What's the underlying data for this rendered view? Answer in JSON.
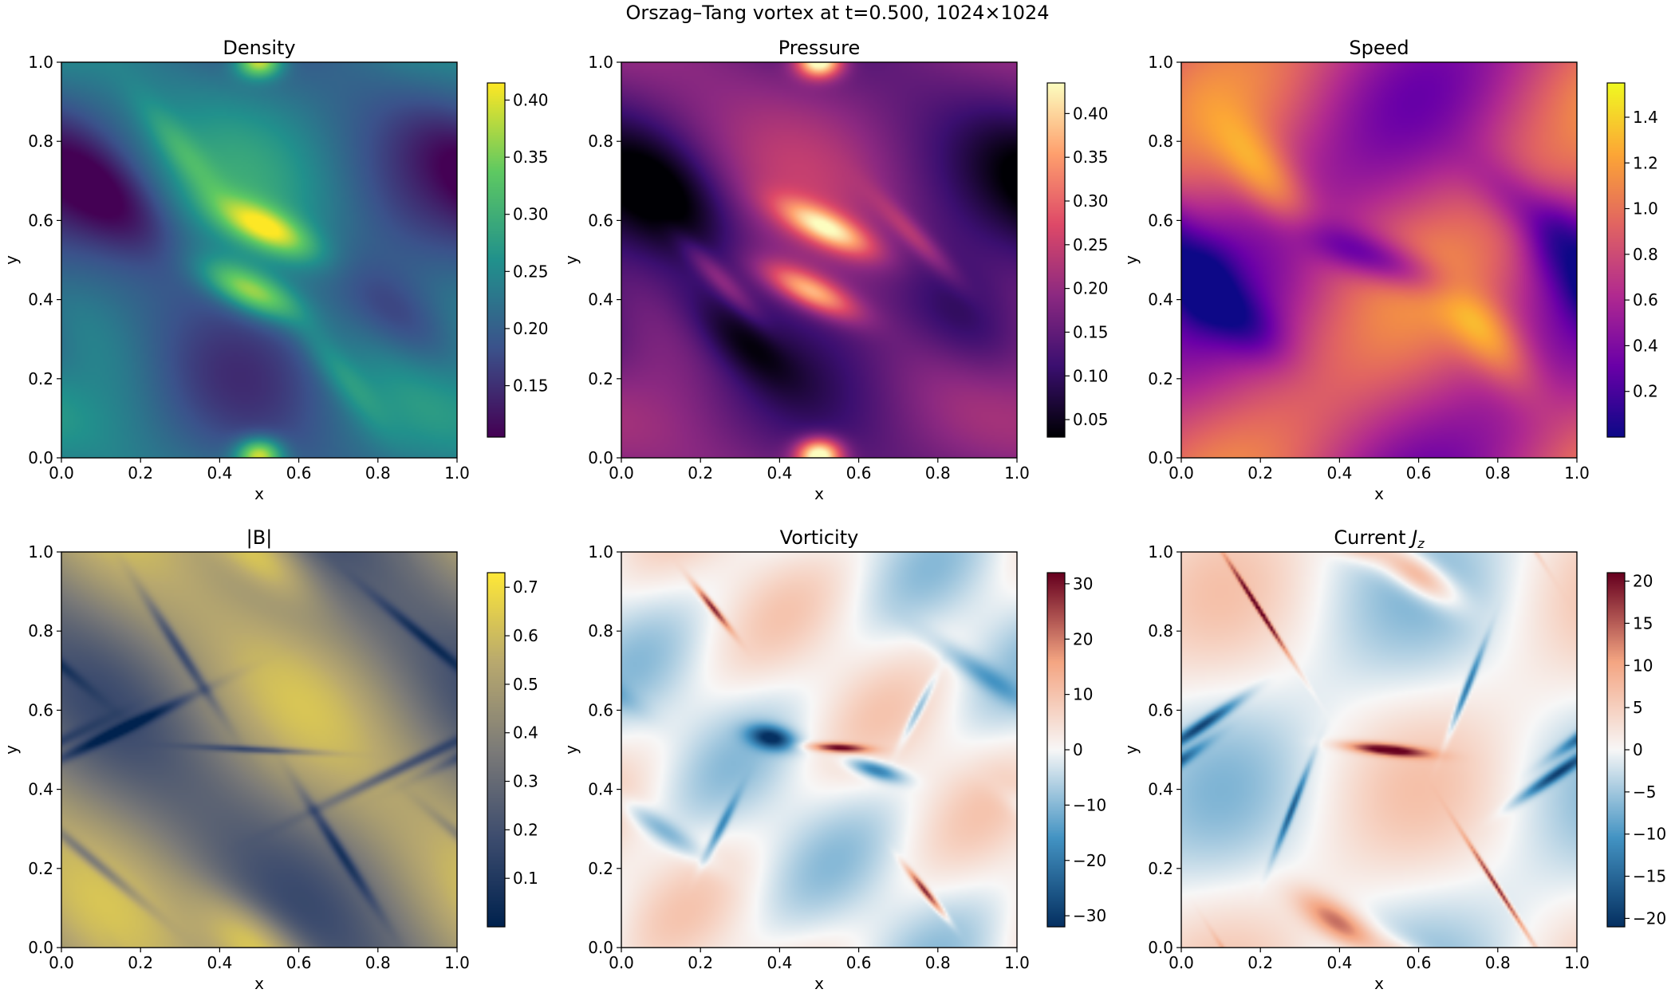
{
  "figure": {
    "suptitle": "Orszag–Tang vortex at t=0.500, 1024×1024"
  },
  "chart_data": [
    {
      "type": "heatmap",
      "title": "Density",
      "title_mathsub": "",
      "xlabel": "x",
      "ylabel": "y",
      "xlim": [
        0,
        1
      ],
      "ylim": [
        0,
        1
      ],
      "xticks": [
        "0.0",
        "0.2",
        "0.4",
        "0.6",
        "0.8",
        "1.0"
      ],
      "yticks": [
        "0.0",
        "0.2",
        "0.4",
        "0.6",
        "0.8",
        "1.0"
      ],
      "colormap": "viridis",
      "colors": [
        "#440154",
        "#3b528b",
        "#21918c",
        "#5ec962",
        "#fde725"
      ],
      "field": "density",
      "vrange": [
        0.105,
        0.415
      ],
      "colorbar_ticks": [
        0.15,
        0.2,
        0.25,
        0.3,
        0.35,
        0.4
      ],
      "colorbar_labels": [
        "0.15",
        "0.20",
        "0.25",
        "0.30",
        "0.35",
        "0.40"
      ]
    },
    {
      "type": "heatmap",
      "title": "Pressure",
      "title_mathsub": "",
      "xlabel": "x",
      "ylabel": "y",
      "xlim": [
        0,
        1
      ],
      "ylim": [
        0,
        1
      ],
      "xticks": [
        "0.0",
        "0.2",
        "0.4",
        "0.6",
        "0.8",
        "1.0"
      ],
      "yticks": [
        "0.0",
        "0.2",
        "0.4",
        "0.6",
        "0.8",
        "1.0"
      ],
      "colormap": "magma",
      "colors": [
        "#000004",
        "#3b0f70",
        "#8c2981",
        "#de4968",
        "#fe9f6d",
        "#fcfdbf"
      ],
      "field": "pressure",
      "vrange": [
        0.03,
        0.435
      ],
      "colorbar_ticks": [
        0.05,
        0.1,
        0.15,
        0.2,
        0.25,
        0.3,
        0.35,
        0.4
      ],
      "colorbar_labels": [
        "0.05",
        "0.10",
        "0.15",
        "0.20",
        "0.25",
        "0.30",
        "0.35",
        "0.40"
      ]
    },
    {
      "type": "heatmap",
      "title": "Speed",
      "title_mathsub": "",
      "xlabel": "x",
      "ylabel": "y",
      "xlim": [
        0,
        1
      ],
      "ylim": [
        0,
        1
      ],
      "xticks": [
        "0.0",
        "0.2",
        "0.4",
        "0.6",
        "0.8",
        "1.0"
      ],
      "yticks": [
        "0.0",
        "0.2",
        "0.4",
        "0.6",
        "0.8",
        "1.0"
      ],
      "colormap": "plasma",
      "colors": [
        "#0d0887",
        "#6a00a8",
        "#b12a90",
        "#e16462",
        "#fca636",
        "#f0f921"
      ],
      "field": "speed",
      "vrange": [
        0.0,
        1.55
      ],
      "colorbar_ticks": [
        0.2,
        0.4,
        0.6,
        0.8,
        1.0,
        1.2,
        1.4
      ],
      "colorbar_labels": [
        "0.2",
        "0.4",
        "0.6",
        "0.8",
        "1.0",
        "1.2",
        "1.4"
      ]
    },
    {
      "type": "heatmap",
      "title": "|B|",
      "title_mathsub": "",
      "xlabel": "x",
      "ylabel": "y",
      "xlim": [
        0,
        1
      ],
      "ylim": [
        0,
        1
      ],
      "xticks": [
        "0.0",
        "0.2",
        "0.4",
        "0.6",
        "0.8",
        "1.0"
      ],
      "yticks": [
        "0.0",
        "0.2",
        "0.4",
        "0.6",
        "0.8",
        "1.0"
      ],
      "colormap": "cividis",
      "colors": [
        "#00224e",
        "#3d4c6e",
        "#7c7b78",
        "#b9a96e",
        "#fee838"
      ],
      "field": "bmag",
      "vrange": [
        0.0,
        0.73
      ],
      "colorbar_ticks": [
        0.1,
        0.2,
        0.3,
        0.4,
        0.5,
        0.6,
        0.7
      ],
      "colorbar_labels": [
        "0.1",
        "0.2",
        "0.3",
        "0.4",
        "0.5",
        "0.6",
        "0.7"
      ]
    },
    {
      "type": "heatmap",
      "title": "Vorticity",
      "title_mathsub": "",
      "xlabel": "x",
      "ylabel": "y",
      "xlim": [
        0,
        1
      ],
      "ylim": [
        0,
        1
      ],
      "xticks": [
        "0.0",
        "0.2",
        "0.4",
        "0.6",
        "0.8",
        "1.0"
      ],
      "yticks": [
        "0.0",
        "0.2",
        "0.4",
        "0.6",
        "0.8",
        "1.0"
      ],
      "colormap": "RdBu_r",
      "colors": [
        "#053061",
        "#4393c3",
        "#f7f7f7",
        "#f4a582",
        "#67001f"
      ],
      "field": "vorticity",
      "vrange": [
        -32,
        32
      ],
      "colorbar_ticks": [
        -30,
        -20,
        -10,
        0,
        10,
        20,
        30
      ],
      "colorbar_labels": [
        "−30",
        "−20",
        "−10",
        "0",
        "10",
        "20",
        "30"
      ]
    },
    {
      "type": "heatmap",
      "title": "Current ",
      "title_mathsub": "J|z",
      "xlabel": "x",
      "ylabel": "y",
      "xlim": [
        0,
        1
      ],
      "ylim": [
        0,
        1
      ],
      "xticks": [
        "0.0",
        "0.2",
        "0.4",
        "0.6",
        "0.8",
        "1.0"
      ],
      "yticks": [
        "0.0",
        "0.2",
        "0.4",
        "0.6",
        "0.8",
        "1.0"
      ],
      "colormap": "RdBu_r",
      "colors": [
        "#053061",
        "#4393c3",
        "#f7f7f7",
        "#f4a582",
        "#67001f"
      ],
      "field": "current",
      "vrange": [
        -21,
        21
      ],
      "colorbar_ticks": [
        -20,
        -15,
        -10,
        -5,
        0,
        5,
        10,
        15,
        20
      ],
      "colorbar_labels": [
        "−20",
        "−15",
        "−10",
        "−5",
        "0",
        "5",
        "10",
        "15",
        "20"
      ]
    }
  ]
}
